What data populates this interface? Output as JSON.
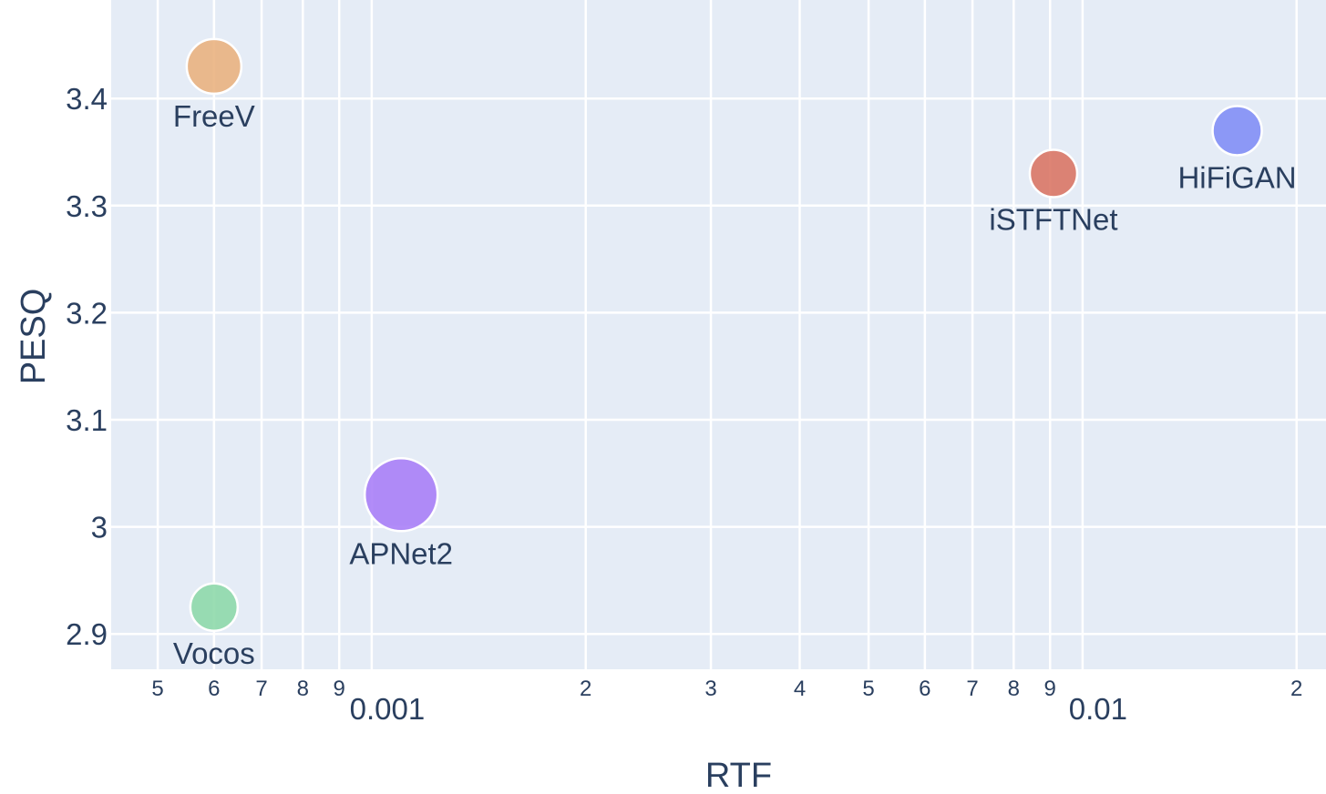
{
  "chart_data": {
    "type": "scatter",
    "x_scale": "log",
    "grid": true,
    "xlabel": "RTF",
    "ylabel": "PESQ",
    "xlim": [
      0.00043,
      0.022
    ],
    "ylim": [
      2.867,
      3.492
    ],
    "x_major_ticks": [
      {
        "value": 0.001,
        "label": "0.001"
      },
      {
        "value": 0.01,
        "label": "0.01"
      }
    ],
    "x_minor_ticks": [
      {
        "value": 0.0005,
        "label": "5"
      },
      {
        "value": 0.0006,
        "label": "6"
      },
      {
        "value": 0.0007,
        "label": "7"
      },
      {
        "value": 0.0008,
        "label": "8"
      },
      {
        "value": 0.0009,
        "label": "9"
      },
      {
        "value": 0.002,
        "label": "2"
      },
      {
        "value": 0.003,
        "label": "3"
      },
      {
        "value": 0.004,
        "label": "4"
      },
      {
        "value": 0.005,
        "label": "5"
      },
      {
        "value": 0.006,
        "label": "6"
      },
      {
        "value": 0.007,
        "label": "7"
      },
      {
        "value": 0.008,
        "label": "8"
      },
      {
        "value": 0.009,
        "label": "9"
      },
      {
        "value": 0.02,
        "label": "2"
      }
    ],
    "y_ticks": [
      {
        "value": 2.9,
        "label": "2.9"
      },
      {
        "value": 3.0,
        "label": "3"
      },
      {
        "value": 3.1,
        "label": "3.1"
      },
      {
        "value": 3.2,
        "label": "3.2"
      },
      {
        "value": 3.3,
        "label": "3.3"
      },
      {
        "value": 3.4,
        "label": "3.4"
      }
    ],
    "points": [
      {
        "label": "FreeV",
        "x": 0.0006,
        "y": 3.43,
        "size": 30,
        "color": "#e9b07d"
      },
      {
        "label": "Vocos",
        "x": 0.0006,
        "y": 2.925,
        "size": 26,
        "color": "#8cd8a8"
      },
      {
        "label": "APNet2",
        "x": 0.0011,
        "y": 3.03,
        "size": 40,
        "color": "#a77cf7"
      },
      {
        "label": "iSTFTNet",
        "x": 0.0091,
        "y": 3.33,
        "size": 26,
        "color": "#da7362"
      },
      {
        "label": "HiFiGAN",
        "x": 0.0165,
        "y": 3.37,
        "size": 27,
        "color": "#7f8cf6"
      }
    ],
    "plot_bg": "#e5ecf6",
    "grid_color": "#ffffff",
    "text_color": "#2a3f5f"
  }
}
